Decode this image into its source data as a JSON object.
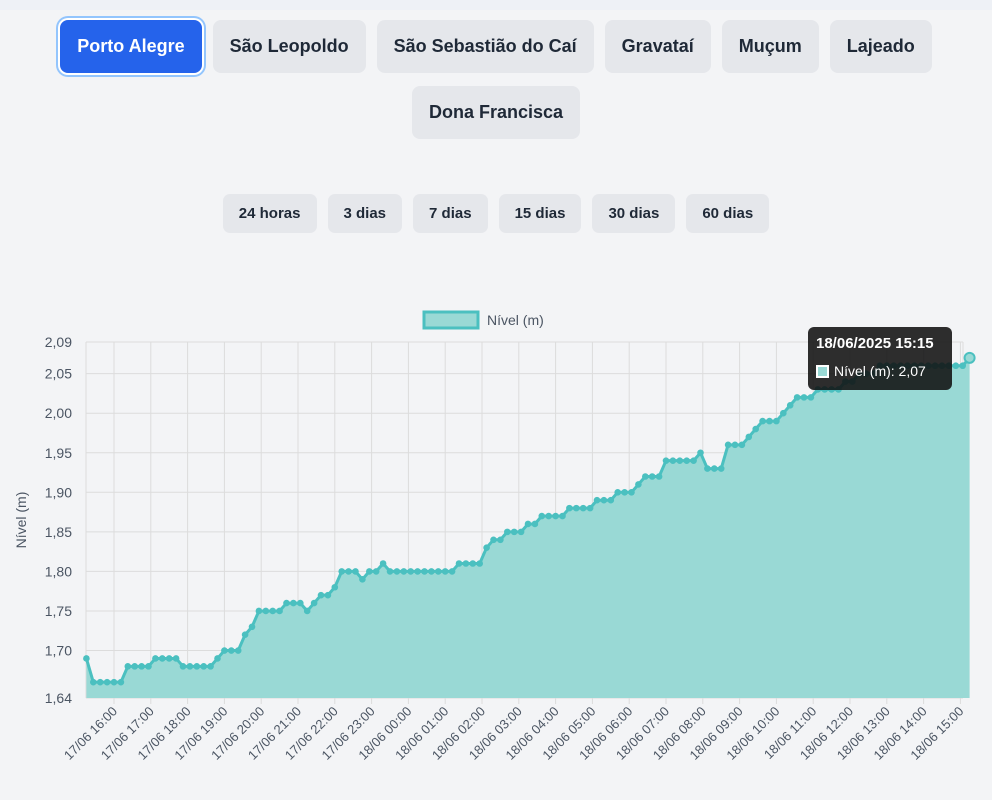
{
  "stations": {
    "items": [
      {
        "label": "Porto Alegre",
        "active": true
      },
      {
        "label": "São Leopoldo"
      },
      {
        "label": "São Sebastião do Caí"
      },
      {
        "label": "Gravataí"
      },
      {
        "label": "Muçum"
      },
      {
        "label": "Lajeado"
      },
      {
        "label": "Dona Francisca"
      }
    ]
  },
  "periods": {
    "items": [
      {
        "label": "24 horas"
      },
      {
        "label": "3 dias"
      },
      {
        "label": "7 dias"
      },
      {
        "label": "15 dias"
      },
      {
        "label": "30 dias"
      },
      {
        "label": "60 dias"
      }
    ]
  },
  "tooltip": {
    "title": "18/06/2025 15:15",
    "label": "Nível (m): 2,07"
  },
  "colors": {
    "accent": "#2563eb",
    "series_fill": "#99d9d5",
    "series_line": "#4bc0c0"
  },
  "chart_data": {
    "type": "area",
    "ylabel": "Nível (m)",
    "xlabel": "",
    "ylim": [
      1.64,
      2.09
    ],
    "y_ticks": [
      "1,64",
      "1,70",
      "1,75",
      "1,80",
      "1,85",
      "1,90",
      "1,95",
      "2,00",
      "2,05",
      "2,09"
    ],
    "y_tick_values": [
      1.64,
      1.7,
      1.75,
      1.8,
      1.85,
      1.9,
      1.95,
      2.0,
      2.05,
      2.09
    ],
    "x_ticks": [
      "17/06 16:00",
      "17/06 17:00",
      "17/06 18:00",
      "17/06 19:00",
      "17/06 20:00",
      "17/06 21:00",
      "17/06 22:00",
      "17/06 23:00",
      "18/06 00:00",
      "18/06 01:00",
      "18/06 02:00",
      "18/06 03:00",
      "18/06 04:00",
      "18/06 05:00",
      "18/06 06:00",
      "18/06 07:00",
      "18/06 08:00",
      "18/06 09:00",
      "18/06 10:00",
      "18/06 11:00",
      "18/06 12:00",
      "18/06 13:00",
      "18/06 14:00",
      "18/06 15:00"
    ],
    "x_start": "17/06 15:15",
    "x_end": "18/06 15:15",
    "grid": true,
    "legend_position": "top",
    "series": [
      {
        "name": "Nível (m)",
        "values": [
          1.69,
          1.66,
          1.66,
          1.66,
          1.66,
          1.66,
          1.68,
          1.68,
          1.68,
          1.68,
          1.69,
          1.69,
          1.69,
          1.69,
          1.68,
          1.68,
          1.68,
          1.68,
          1.68,
          1.69,
          1.7,
          1.7,
          1.7,
          1.72,
          1.73,
          1.75,
          1.75,
          1.75,
          1.75,
          1.76,
          1.76,
          1.76,
          1.75,
          1.76,
          1.77,
          1.77,
          1.78,
          1.8,
          1.8,
          1.8,
          1.79,
          1.8,
          1.8,
          1.81,
          1.8,
          1.8,
          1.8,
          1.8,
          1.8,
          1.8,
          1.8,
          1.8,
          1.8,
          1.8,
          1.81,
          1.81,
          1.81,
          1.81,
          1.83,
          1.84,
          1.84,
          1.85,
          1.85,
          1.85,
          1.86,
          1.86,
          1.87,
          1.87,
          1.87,
          1.87,
          1.88,
          1.88,
          1.88,
          1.88,
          1.89,
          1.89,
          1.89,
          1.9,
          1.9,
          1.9,
          1.91,
          1.92,
          1.92,
          1.92,
          1.94,
          1.94,
          1.94,
          1.94,
          1.94,
          1.95,
          1.93,
          1.93,
          1.93,
          1.96,
          1.96,
          1.96,
          1.97,
          1.98,
          1.99,
          1.99,
          1.99,
          2.0,
          2.01,
          2.02,
          2.02,
          2.02,
          2.03,
          2.03,
          2.03,
          2.03,
          2.04,
          2.04,
          2.05,
          2.05,
          2.05,
          2.06,
          2.06,
          2.06,
          2.06,
          2.06,
          2.06,
          2.06,
          2.06,
          2.06,
          2.06,
          2.06,
          2.06,
          2.06,
          2.07
        ]
      }
    ]
  }
}
